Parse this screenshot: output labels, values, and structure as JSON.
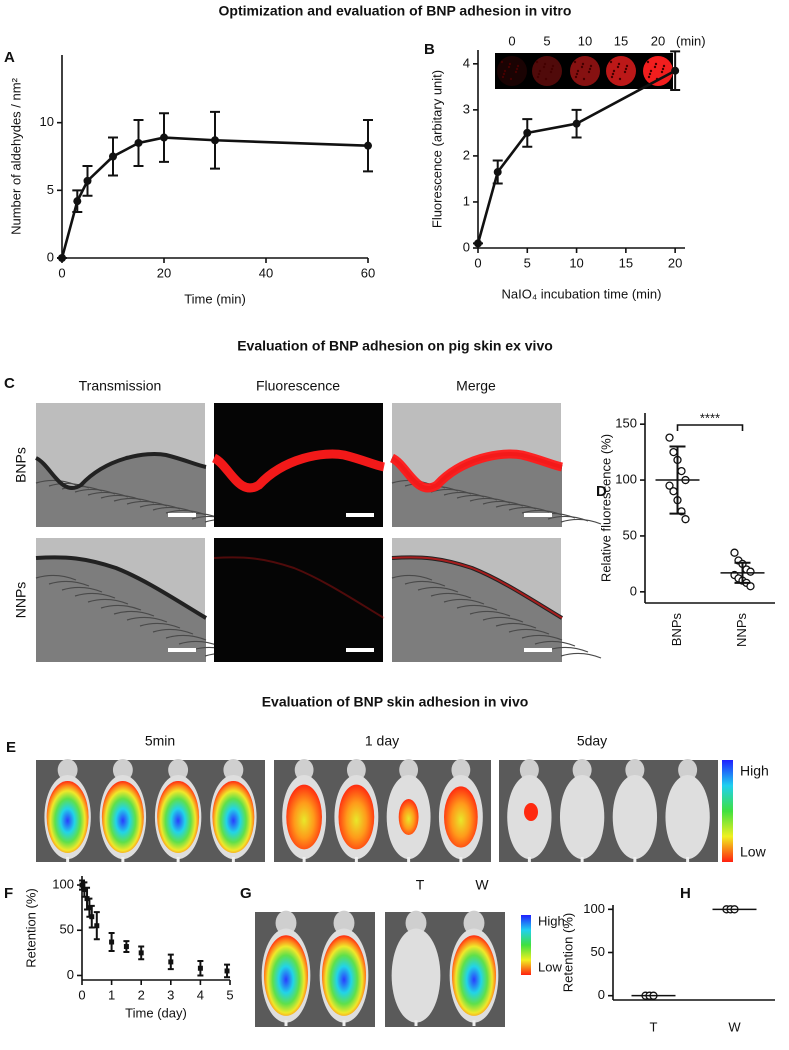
{
  "sections": [
    "Optimization and evaluation of BNP adhesion in vitro",
    "Evaluation of BNP adhesion on pig skin ex vivo",
    "Evaluation of BNP skin adhesion in vivo"
  ],
  "panel_labels": [
    "A",
    "B",
    "C",
    "D",
    "E",
    "F",
    "G",
    "H"
  ],
  "inset_b": {
    "labels": [
      "0",
      "5",
      "10",
      "15",
      "20"
    ],
    "unit": "(min)"
  },
  "panel_c": {
    "columns": [
      "Transmission",
      "Fluorescence",
      "Merge"
    ],
    "rows": [
      "BNPs",
      "NNPs"
    ]
  },
  "panel_e": {
    "timepoints": [
      "5min",
      "1 day",
      "5day"
    ],
    "scale": [
      "High",
      "Low"
    ]
  },
  "panel_g": {
    "groups": [
      "T",
      "W"
    ],
    "scale": [
      "High",
      "Low"
    ]
  },
  "chart_data": [
    {
      "type": "line",
      "xlabel": "Time (min)",
      "ylabel": "Number of aldehydes / nm²",
      "x": [
        0,
        3,
        5,
        10,
        15,
        20,
        30,
        60
      ],
      "values": [
        0,
        4.2,
        5.7,
        7.5,
        8.5,
        8.9,
        8.7,
        8.3
      ],
      "errors": [
        0,
        0.8,
        1.1,
        1.4,
        1.7,
        1.8,
        2.1,
        1.9
      ],
      "xlim": [
        0,
        60
      ],
      "xticks": [
        0,
        20,
        40,
        60
      ],
      "ylim": [
        0,
        15
      ],
      "yticks": [
        0,
        5,
        10
      ],
      "color": "#111111"
    },
    {
      "type": "line",
      "xlabel": "NaIO₄ incubation time (min)",
      "ylabel": "Fluorescence (arbitary unit)",
      "x": [
        0,
        2,
        5,
        10,
        20
      ],
      "values": [
        0.1,
        1.65,
        2.5,
        2.7,
        3.85
      ],
      "errors": [
        0,
        0.25,
        0.3,
        0.3,
        0.42
      ],
      "xlim": [
        0,
        21
      ],
      "xticks": [
        0,
        5,
        10,
        15,
        20
      ],
      "ylim": [
        0,
        4.3
      ],
      "yticks": [
        0,
        1,
        2,
        3,
        4
      ],
      "color": "#111111"
    },
    {
      "type": "dot",
      "ylabel": "Relative fluorescence (%)",
      "categories": [
        "BNPs",
        "NNPs"
      ],
      "values": [
        [
          138,
          125,
          118,
          108,
          100,
          95,
          90,
          82,
          72,
          65
        ],
        [
          35,
          28,
          25,
          20,
          18,
          15,
          12,
          10,
          8,
          5
        ]
      ],
      "means": [
        100,
        17
      ],
      "sds": [
        30,
        9
      ],
      "annotation": "****",
      "ylim": [
        -10,
        160
      ],
      "yticks": [
        0,
        50,
        100,
        150
      ],
      "color": "#111111"
    },
    {
      "type": "scatter",
      "xlabel": "Time (day)",
      "ylabel": "Retention (%)",
      "x": [
        0,
        0.08,
        0.17,
        0.25,
        0.33,
        0.5,
        1,
        1.5,
        2,
        3,
        4,
        4.9
      ],
      "values": [
        100,
        95,
        85,
        75,
        65,
        55,
        37,
        32,
        25,
        15,
        8,
        5
      ],
      "errors": [
        5,
        8,
        12,
        10,
        12,
        15,
        10,
        6,
        7,
        8,
        8,
        7
      ],
      "xlim": [
        0,
        5
      ],
      "xticks": [
        0,
        1,
        2,
        3,
        4,
        5
      ],
      "ylim": [
        -5,
        110
      ],
      "yticks": [
        0,
        50,
        100
      ],
      "color": "#111111"
    },
    {
      "type": "dot",
      "ylabel": "Retention (%)",
      "categories": [
        "T",
        "W"
      ],
      "values": [
        [
          0,
          0,
          0
        ],
        [
          100,
          100,
          100
        ]
      ],
      "means": [
        0,
        100
      ],
      "ylim": [
        -5,
        105
      ],
      "yticks": [
        0,
        50,
        100
      ],
      "color": "#111111"
    }
  ]
}
